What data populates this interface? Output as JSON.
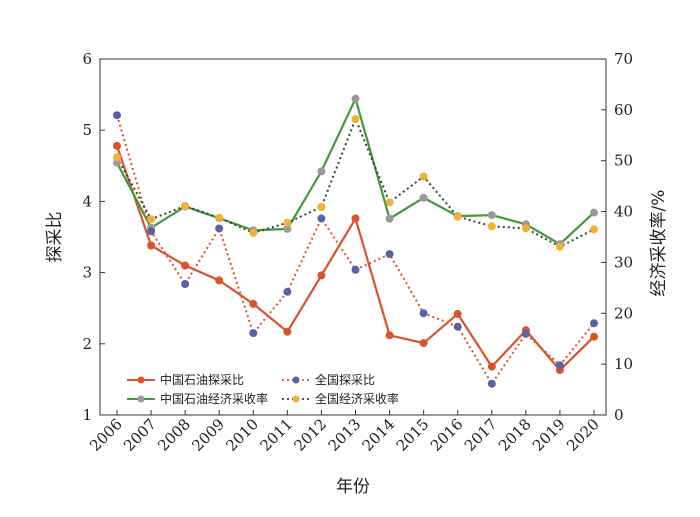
{
  "chart_data": {
    "type": "line",
    "xlabel": "年份",
    "ylabel": "探采比",
    "y2label": "经济采收率/%",
    "categories": [
      "2006",
      "2007",
      "2008",
      "2009",
      "2010",
      "2011",
      "2012",
      "2013",
      "2014",
      "2015",
      "2016",
      "2017",
      "2018",
      "2019",
      "2020"
    ],
    "ylim": [
      1,
      6
    ],
    "y2lim": [
      0,
      70
    ],
    "yticks": [
      1,
      2,
      3,
      4,
      5,
      6
    ],
    "y2ticks": [
      0,
      10,
      20,
      30,
      40,
      50,
      60,
      70
    ],
    "legend_position": "lower-left",
    "series": [
      {
        "name": "中国石油探采比",
        "axis": "left",
        "style": "solid",
        "color": "#d9532c",
        "marker_color": "#d9532c",
        "values": [
          4.78,
          3.38,
          3.1,
          2.89,
          2.56,
          2.17,
          2.96,
          3.76,
          2.12,
          2.01,
          2.42,
          1.68,
          2.19,
          1.63,
          2.1
        ]
      },
      {
        "name": "全国探采比",
        "axis": "left",
        "style": "dotted",
        "color": "#d9532c",
        "marker_color": "#5a62a6",
        "values": [
          5.21,
          3.58,
          2.84,
          3.62,
          2.15,
          2.73,
          3.76,
          3.04,
          3.26,
          2.43,
          2.24,
          1.44,
          2.14,
          1.7,
          2.29
        ]
      },
      {
        "name": "中国石油经济采收率",
        "axis": "right",
        "style": "solid",
        "color": "#3f9a3c",
        "marker_color": "#9a9a9a",
        "values": [
          49.6,
          36.8,
          41.0,
          38.7,
          36.3,
          36.6,
          47.9,
          62.2,
          38.6,
          42.7,
          39.1,
          39.3,
          37.5,
          33.6,
          39.8
        ]
      },
      {
        "name": "全国经济采收率",
        "axis": "right",
        "style": "dotted",
        "color": "#2e4a2e",
        "marker_color": "#f2b134",
        "values": [
          50.7,
          38.5,
          41.1,
          38.8,
          35.8,
          37.8,
          40.9,
          58.2,
          41.8,
          46.9,
          39.0,
          37.1,
          36.7,
          33.1,
          36.5
        ]
      }
    ]
  }
}
